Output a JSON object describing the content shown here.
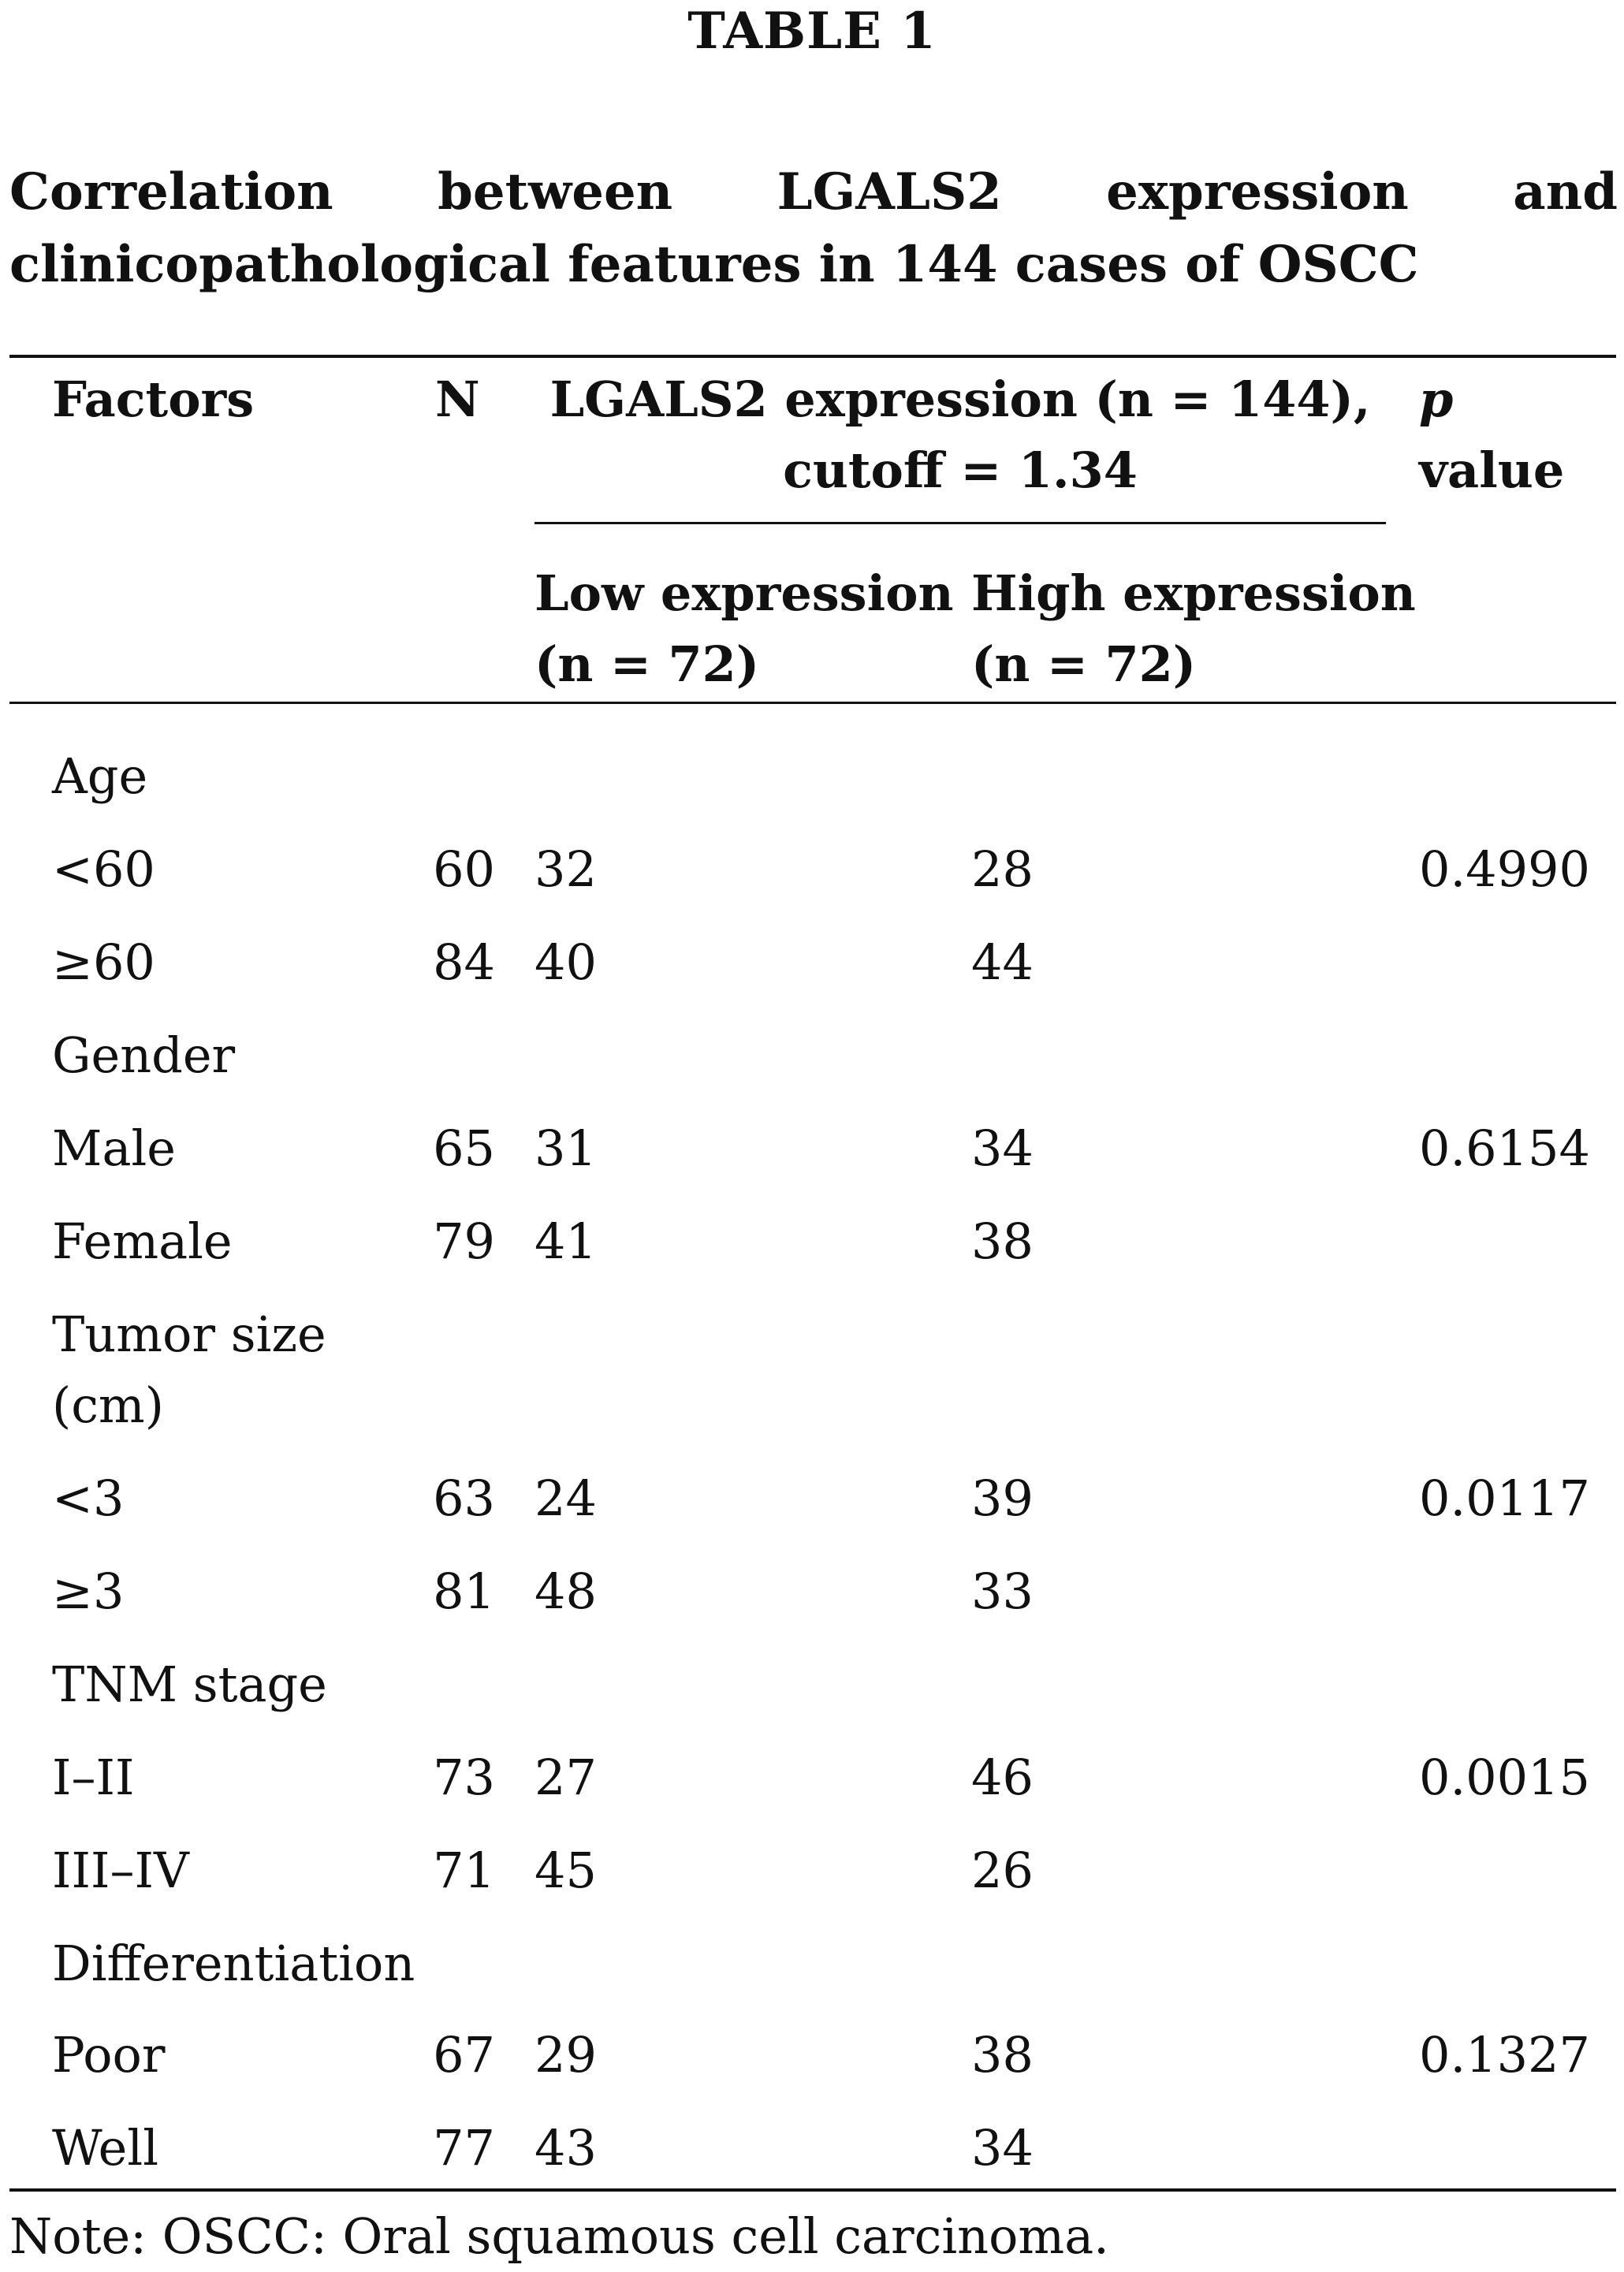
{
  "table_label": "TABLE 1",
  "caption": "Correlation between LGALS2 expression and clinicopathological features in 144 cases of OSCC",
  "header": {
    "factors": "Factors",
    "n": "N",
    "group_line1": "LGALS2 expression (n = 144),",
    "group_line2": "cutoff = 1.34",
    "p_line1": "p",
    "p_line2": "value",
    "low_line1": "Low expression",
    "low_line2": "(n = 72)",
    "high_line1": "High expression",
    "high_line2": "(n = 72)"
  },
  "rows": [
    {
      "factor": "Age",
      "n": "",
      "low": "",
      "high": "",
      "p": ""
    },
    {
      "factor": "<60",
      "n": "60",
      "low": "32",
      "high": "28",
      "p": "0.4990"
    },
    {
      "factor": "≥60",
      "n": "84",
      "low": "40",
      "high": "44",
      "p": ""
    },
    {
      "factor": "Gender",
      "n": "",
      "low": "",
      "high": "",
      "p": ""
    },
    {
      "factor": "Male",
      "n": "65",
      "low": "31",
      "high": "34",
      "p": "0.6154"
    },
    {
      "factor": "Female",
      "n": "79",
      "low": "41",
      "high": "38",
      "p": ""
    },
    {
      "factor": "Tumor size",
      "factor_line2": "(cm)",
      "n": "",
      "low": "",
      "high": "",
      "p": ""
    },
    {
      "factor": "<3",
      "n": "63",
      "low": "24",
      "high": "39",
      "p": "0.0117"
    },
    {
      "factor": "≥3",
      "n": "81",
      "low": "48",
      "high": "33",
      "p": ""
    },
    {
      "factor": "TNM stage",
      "n": "",
      "low": "",
      "high": "",
      "p": ""
    },
    {
      "factor": "I–II",
      "n": "73",
      "low": "27",
      "high": "46",
      "p": "0.0015"
    },
    {
      "factor": "III–IV",
      "n": "71",
      "low": "45",
      "high": "26",
      "p": ""
    },
    {
      "factor": "Differentiation",
      "n": "",
      "low": "",
      "high": "",
      "p": ""
    },
    {
      "factor": "Poor",
      "n": "67",
      "low": "29",
      "high": "38",
      "p": "0.1327"
    },
    {
      "factor": "Well",
      "n": "77",
      "low": "43",
      "high": "34",
      "p": ""
    }
  ],
  "note": "Note: OSCC: Oral squamous cell carcinoma."
}
